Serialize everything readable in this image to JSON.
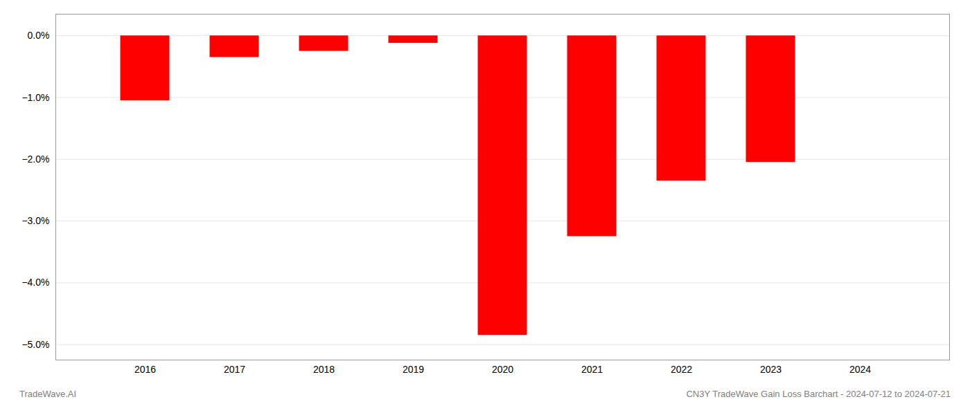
{
  "chart_data": {
    "type": "bar",
    "x": [
      2016,
      2017,
      2018,
      2019,
      2020,
      2021,
      2022,
      2023,
      2024
    ],
    "values": [
      -1.05,
      -0.35,
      -0.25,
      -0.12,
      -4.85,
      -3.25,
      -2.35,
      -2.05,
      0.0
    ],
    "color": "#ff0000",
    "xlim": [
      2015.0,
      2025.0
    ],
    "xticks": [
      2016,
      2017,
      2018,
      2019,
      2020,
      2021,
      2022,
      2023,
      2024
    ],
    "ylim": [
      -5.25,
      0.35
    ],
    "yticks": [
      {
        "value": 0.0,
        "label": "0.0%"
      },
      {
        "value": -1.0,
        "label": "−1.0%"
      },
      {
        "value": -2.0,
        "label": "−2.0%"
      },
      {
        "value": -3.0,
        "label": "−3.0%"
      },
      {
        "value": -4.0,
        "label": "−4.0%"
      },
      {
        "value": -5.0,
        "label": "−5.0%"
      }
    ],
    "grid": true,
    "annotations": [
      "TradeWave.AI",
      "CN3Y TradeWave Gain Loss Barchart - 2024-07-12 to 2024-07-21"
    ]
  }
}
